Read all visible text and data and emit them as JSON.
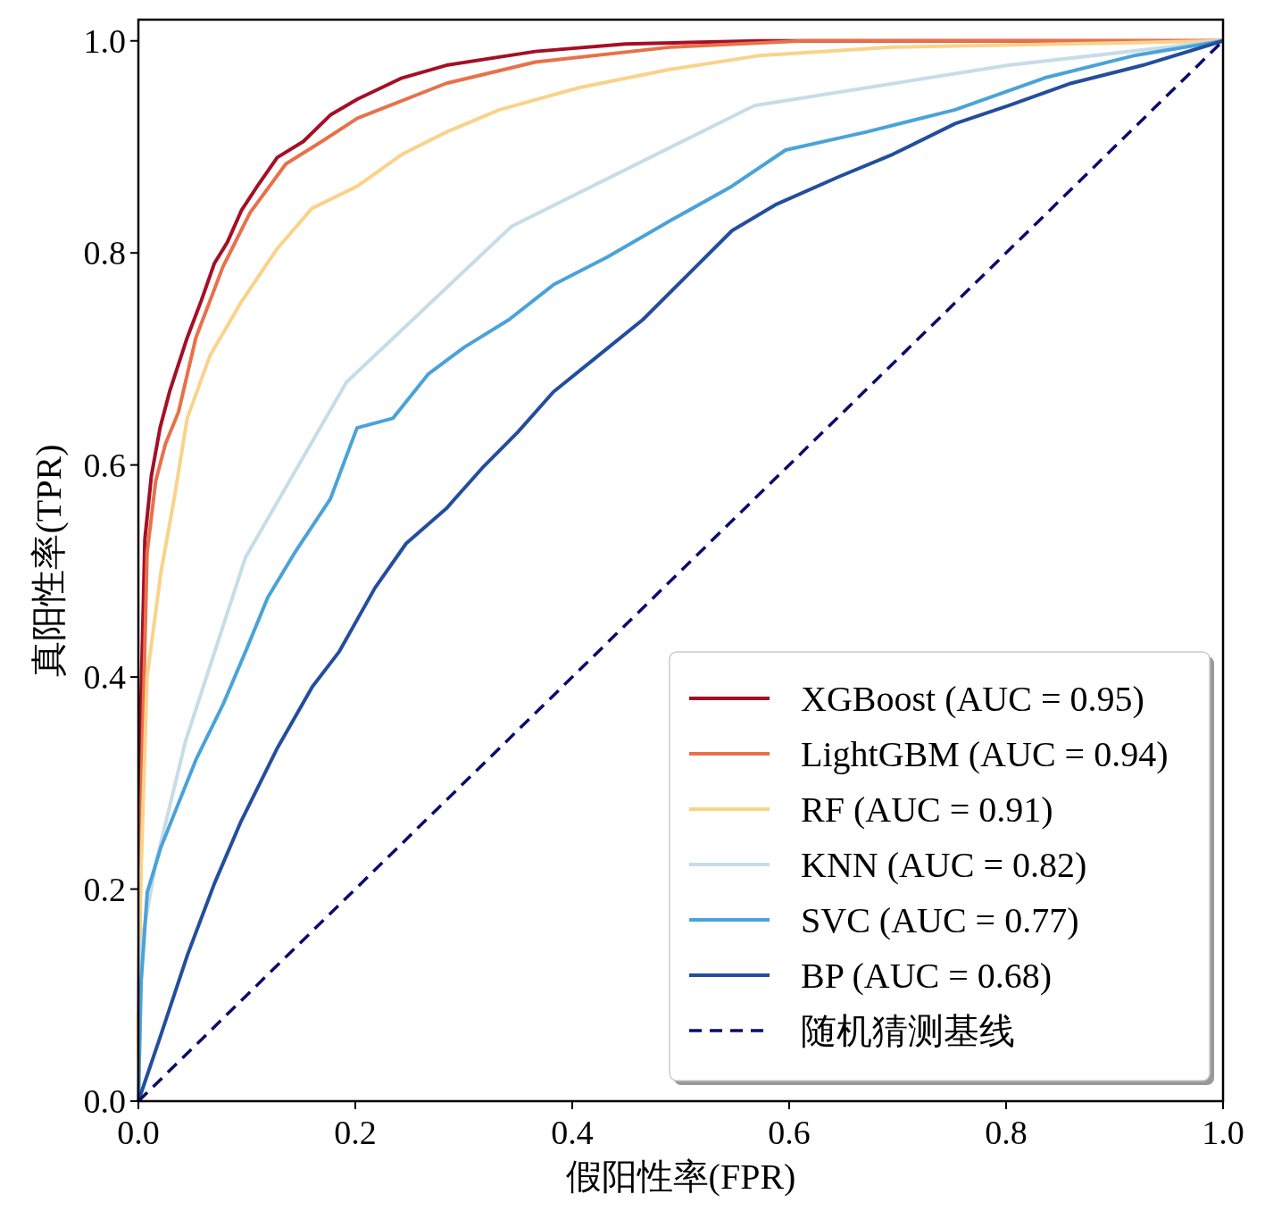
{
  "chart_data": {
    "type": "line",
    "xlabel": "假阳性率(FPR)",
    "ylabel": "真阳性率(TPR)",
    "xlim": [
      0,
      1
    ],
    "ylim": [
      0,
      1.02
    ],
    "xticks": [
      {
        "value": 0,
        "label": "0.0"
      },
      {
        "value": 0.2,
        "label": "0.2"
      },
      {
        "value": 0.4,
        "label": "0.4"
      },
      {
        "value": 0.6,
        "label": "0.6"
      },
      {
        "value": 0.8,
        "label": "0.8"
      },
      {
        "value": 1,
        "label": "1.0"
      }
    ],
    "yticks": [
      {
        "value": 0,
        "label": "0.0"
      },
      {
        "value": 0.2,
        "label": "0.2"
      },
      {
        "value": 0.4,
        "label": "0.4"
      },
      {
        "value": 0.6,
        "label": "0.6"
      },
      {
        "value": 0.8,
        "label": "0.8"
      },
      {
        "value": 1,
        "label": "1.0"
      }
    ],
    "grid": false,
    "legend": "bottom right",
    "series": [
      {
        "name": "XGBoost (AUC = 0.95)",
        "color": "#a50f26",
        "x": [
          0,
          0.002,
          0.006,
          0.012,
          0.02,
          0.029,
          0.037,
          0.045,
          0.058,
          0.07,
          0.082,
          0.095,
          0.111,
          0.128,
          0.152,
          0.177,
          0.202,
          0.243,
          0.284,
          0.366,
          0.449,
          0.572,
          1.0
        ],
        "values": [
          0,
          0.36,
          0.53,
          0.59,
          0.635,
          0.67,
          0.695,
          0.72,
          0.755,
          0.79,
          0.81,
          0.84,
          0.865,
          0.89,
          0.905,
          0.93,
          0.945,
          0.965,
          0.977,
          0.99,
          0.997,
          1.0,
          1.0
        ]
      },
      {
        "name": "LightGBM (AUC = 0.94)",
        "color": "#e8714a",
        "x": [
          0,
          0.0025,
          0.008,
          0.016,
          0.025,
          0.037,
          0.053,
          0.078,
          0.103,
          0.136,
          0.169,
          0.202,
          0.284,
          0.366,
          0.49,
          0.613,
          1.0
        ],
        "values": [
          0,
          0.28,
          0.517,
          0.585,
          0.62,
          0.65,
          0.72,
          0.787,
          0.838,
          0.884,
          0.905,
          0.927,
          0.96,
          0.98,
          0.994,
          1.0,
          1.0
        ]
      },
      {
        "name": "RF (AUC = 0.91)",
        "color": "#f9d38a",
        "x": [
          0,
          0.002,
          0.008,
          0.021,
          0.033,
          0.045,
          0.066,
          0.095,
          0.128,
          0.16,
          0.202,
          0.243,
          0.284,
          0.333,
          0.407,
          0.49,
          0.572,
          0.695,
          1.0
        ],
        "values": [
          0,
          0.2,
          0.4,
          0.5,
          0.568,
          0.644,
          0.703,
          0.754,
          0.804,
          0.842,
          0.863,
          0.893,
          0.914,
          0.935,
          0.956,
          0.973,
          0.986,
          0.994,
          1.0
        ]
      },
      {
        "name": "KNN (AUC = 0.82)",
        "color": "#c6dde8",
        "x": [
          0,
          0.003,
          0.0165,
          0.0436,
          0.0988,
          0.1918,
          0.344,
          0.568,
          0.802,
          1.0
        ],
        "values": [
          0,
          0.15,
          0.226,
          0.34,
          0.513,
          0.678,
          0.825,
          0.939,
          0.977,
          1.0
        ]
      },
      {
        "name": "SVC (AUC = 0.77)",
        "color": "#4aa3d8",
        "x": [
          0,
          0.0025,
          0.0082,
          0.0206,
          0.037,
          0.0535,
          0.078,
          0.0988,
          0.1193,
          0.144,
          0.177,
          0.2016,
          0.2346,
          0.2675,
          0.3004,
          0.3416,
          0.3827,
          0.4321,
          0.4897,
          0.5473,
          0.5967,
          0.6708,
          0.7531,
          0.8354,
          0.9177,
          1.0
        ],
        "values": [
          0,
          0.112,
          0.197,
          0.239,
          0.281,
          0.323,
          0.374,
          0.424,
          0.475,
          0.517,
          0.568,
          0.635,
          0.644,
          0.686,
          0.711,
          0.737,
          0.77,
          0.796,
          0.83,
          0.863,
          0.897,
          0.914,
          0.935,
          0.965,
          0.986,
          1.0
        ]
      },
      {
        "name": "BP (AUC = 0.68)",
        "color": "#234e9d",
        "x": [
          0,
          0.0206,
          0.0453,
          0.07,
          0.0947,
          0.1276,
          0.1605,
          0.1852,
          0.2181,
          0.2469,
          0.284,
          0.3169,
          0.3498,
          0.3827,
          0.4239,
          0.465,
          0.5062,
          0.5473,
          0.5885,
          0.6461,
          0.6955,
          0.7531,
          0.8025,
          0.86,
          0.926,
          1.0
        ],
        "values": [
          0,
          0.062,
          0.138,
          0.205,
          0.264,
          0.332,
          0.391,
          0.424,
          0.484,
          0.526,
          0.559,
          0.597,
          0.631,
          0.669,
          0.703,
          0.737,
          0.779,
          0.821,
          0.846,
          0.872,
          0.893,
          0.922,
          0.939,
          0.96,
          0.977,
          1.0
        ]
      },
      {
        "name": "随机猜测基线",
        "color": "#0b0b6e",
        "line_style": "dashed",
        "x": [
          0,
          1
        ],
        "values": [
          0,
          1
        ]
      }
    ]
  }
}
